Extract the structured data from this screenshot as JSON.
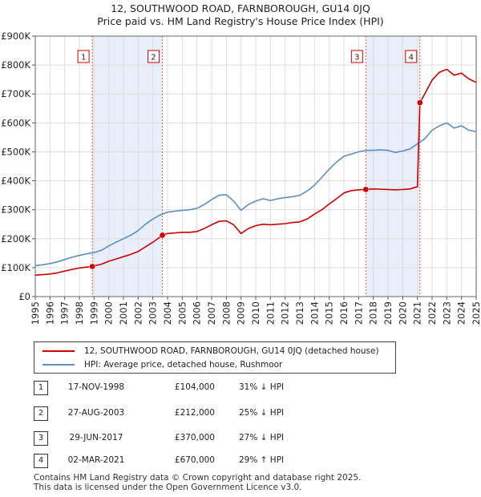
{
  "title_line1": "12, SOUTHWOOD ROAD, FARNBOROUGH, GU14 0JQ",
  "title_line2": "Price paid vs. HM Land Registry's House Price Index (HPI)",
  "colors": {
    "property": "#cc0000",
    "hpi": "#5b8ec7",
    "shade": "#e8eefa",
    "marker_line": "#dd5555"
  },
  "chart_data": {
    "type": "line",
    "xlim": [
      1995,
      2025
    ],
    "ylim": [
      0,
      900000
    ],
    "x_ticks": [
      1995,
      1996,
      1997,
      1998,
      1999,
      2000,
      2001,
      2002,
      2003,
      2004,
      2005,
      2006,
      2007,
      2008,
      2009,
      2010,
      2011,
      2012,
      2013,
      2014,
      2015,
      2016,
      2017,
      2018,
      2019,
      2020,
      2021,
      2022,
      2023,
      2024,
      2025
    ],
    "y_ticks": [
      {
        "value": 0,
        "label": "£0"
      },
      {
        "value": 100000,
        "label": "£100K"
      },
      {
        "value": 200000,
        "label": "£200K"
      },
      {
        "value": 300000,
        "label": "£300K"
      },
      {
        "value": 400000,
        "label": "£400K"
      },
      {
        "value": 500000,
        "label": "£500K"
      },
      {
        "value": 600000,
        "label": "£600K"
      },
      {
        "value": 700000,
        "label": "£700K"
      },
      {
        "value": 800000,
        "label": "£800K"
      },
      {
        "value": 900000,
        "label": "£900K"
      }
    ],
    "shaded_ranges": [
      [
        1998.88,
        2003.65
      ],
      [
        2017.49,
        2021.17
      ]
    ],
    "series": [
      {
        "name": "hpi",
        "x": [
          1995,
          1995.5,
          1996,
          1996.5,
          1997,
          1997.5,
          1998,
          1998.5,
          1999,
          1999.5,
          2000,
          2000.5,
          2001,
          2001.5,
          2002,
          2002.5,
          2003,
          2003.5,
          2004,
          2004.5,
          2005,
          2005.5,
          2006,
          2006.5,
          2007,
          2007.5,
          2008,
          2008.5,
          2009,
          2009.5,
          2010,
          2010.5,
          2011,
          2011.5,
          2012,
          2012.5,
          2013,
          2013.5,
          2014,
          2014.5,
          2015,
          2015.5,
          2016,
          2016.5,
          2017,
          2017.5,
          2018,
          2018.5,
          2019,
          2019.5,
          2020,
          2020.5,
          2021,
          2021.5,
          2022,
          2022.5,
          2023,
          2023.5,
          2024,
          2024.5,
          2025
        ],
        "values": [
          107000,
          110000,
          114000,
          120000,
          128000,
          136000,
          142000,
          148000,
          152000,
          160000,
          175000,
          188000,
          200000,
          212000,
          228000,
          250000,
          268000,
          282000,
          292000,
          295000,
          298000,
          300000,
          305000,
          318000,
          335000,
          350000,
          352000,
          330000,
          298000,
          318000,
          330000,
          338000,
          332000,
          338000,
          342000,
          345000,
          350000,
          365000,
          385000,
          412000,
          440000,
          465000,
          485000,
          492000,
          500000,
          505000,
          505000,
          507000,
          505000,
          498000,
          503000,
          510000,
          528000,
          545000,
          575000,
          590000,
          600000,
          582000,
          590000,
          575000,
          570000
        ]
      },
      {
        "name": "property",
        "x": [
          1995,
          1995.5,
          1996,
          1996.5,
          1997,
          1997.5,
          1998,
          1998.5,
          1998.88,
          1999,
          1999.5,
          2000,
          2000.5,
          2001,
          2001.5,
          2002,
          2002.5,
          2003,
          2003.5,
          2003.65,
          2004,
          2004.5,
          2005,
          2005.5,
          2006,
          2006.5,
          2007,
          2007.5,
          2008,
          2008.5,
          2009,
          2009.5,
          2010,
          2010.5,
          2011,
          2011.5,
          2012,
          2012.5,
          2013,
          2013.5,
          2014,
          2014.5,
          2015,
          2015.5,
          2016,
          2016.5,
          2017,
          2017.49,
          2018,
          2018.5,
          2019,
          2019.5,
          2020,
          2020.5,
          2021,
          2021.17,
          2021.2,
          2021.5,
          2022,
          2022.5,
          2023,
          2023.5,
          2024,
          2024.5,
          2025
        ],
        "values": [
          74000,
          76000,
          78000,
          82000,
          88000,
          94000,
          99000,
          102000,
          104000,
          106000,
          112000,
          122000,
          130000,
          138000,
          146000,
          156000,
          172000,
          188000,
          206000,
          212000,
          218000,
          220000,
          222000,
          222000,
          225000,
          235000,
          248000,
          260000,
          262000,
          248000,
          218000,
          235000,
          245000,
          250000,
          248000,
          250000,
          252000,
          256000,
          258000,
          268000,
          285000,
          300000,
          320000,
          338000,
          358000,
          366000,
          369000,
          370000,
          372000,
          371000,
          370000,
          369000,
          370000,
          372000,
          380000,
          670000,
          672000,
          700000,
          748000,
          775000,
          785000,
          765000,
          772000,
          752000,
          740000
        ]
      }
    ],
    "sales": [
      {
        "label": "1",
        "x": 1998.88,
        "price": 104000
      },
      {
        "label": "2",
        "x": 2003.65,
        "price": 212000
      },
      {
        "label": "3",
        "x": 2017.49,
        "price": 370000
      },
      {
        "label": "4",
        "x": 2021.17,
        "price": 670000
      }
    ]
  },
  "legend": {
    "property_label": "12, SOUTHWOOD ROAD, FARNBOROUGH, GU14 0JQ (detached house)",
    "hpi_label": "HPI: Average price, detached house, Rushmoor"
  },
  "table": [
    {
      "num": "1",
      "date": "17-NOV-1998",
      "price": "£104,000",
      "pct": "31% ↓ HPI"
    },
    {
      "num": "2",
      "date": "27-AUG-2003",
      "price": "£212,000",
      "pct": "25% ↓ HPI"
    },
    {
      "num": "3",
      "date": "29-JUN-2017",
      "price": "£370,000",
      "pct": "27% ↓ HPI"
    },
    {
      "num": "4",
      "date": "02-MAR-2021",
      "price": "£670,000",
      "pct": "29% ↑ HPI"
    }
  ],
  "footer": {
    "line1": "Contains HM Land Registry data © Crown copyright and database right 2025.",
    "line2": "This data is licensed under the Open Government Licence v3.0."
  }
}
